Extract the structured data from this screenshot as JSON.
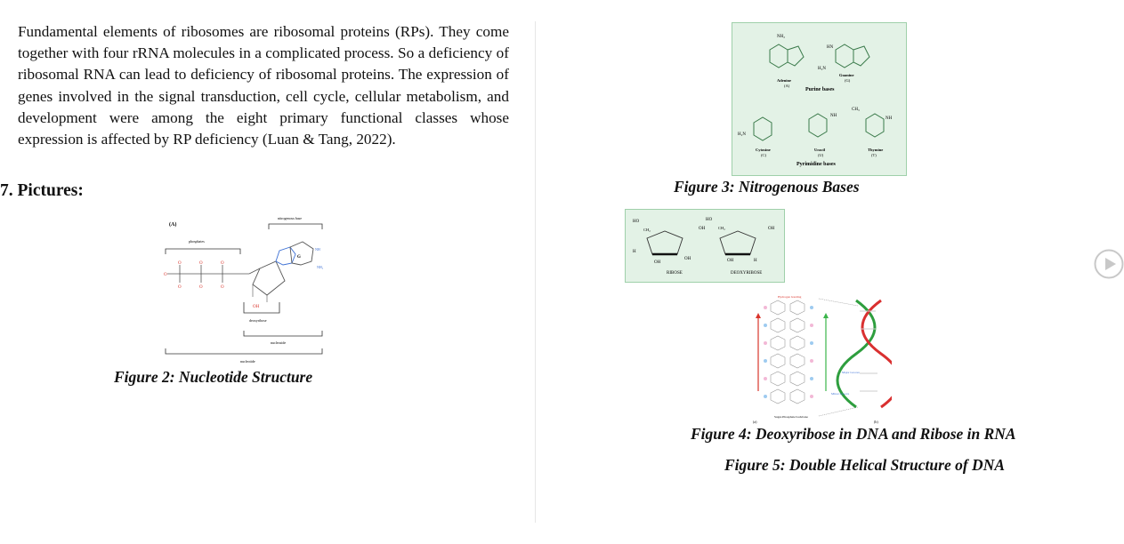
{
  "paragraph": "Fundamental elements of ribosomes are ribosomal proteins (RPs). They come together with four rRNA molecules in a complicated process. So a deficiency of ribosomal RNA can lead to deficiency of ribosomal proteins. The expression of genes involved in the signal transduction, cell cycle, cellular metabolism, and development were among the eight primary functional classes whose expression is affected by RP deficiency (Luan & Tang, 2022).",
  "heading": "7. Pictures:",
  "figure2": {
    "caption": "Figure 2: Nucleotide Structure",
    "label_a": "(A)",
    "nitrogenous_base": "nitrogenous base",
    "phosphates": "phosphates",
    "base_letter": "G",
    "deoxyribose": "deoxyribose",
    "nucleoside": "nucleoside",
    "nucleotide": "nucleotide",
    "oh": "OH",
    "nh": "NH",
    "nh2": "NH₂"
  },
  "figure3": {
    "caption": "Figure 3: Nitrogenous Bases",
    "adenine": "Adenine",
    "adenine_abbr": "(A)",
    "guanine": "Guanine",
    "guanine_abbr": "(G)",
    "purine_bases": "Purine bases",
    "cytosine": "Cytosine",
    "cytosine_abbr": "(C)",
    "uracil": "Uracil",
    "uracil_abbr": "(U)",
    "thymine": "Thymine",
    "thymine_abbr": "(T)",
    "pyrimidine_bases": "Pyrimidine bases",
    "nh2": "NH₂",
    "h2n": "H₂N",
    "hn": "HN",
    "nh": "NH",
    "ch3": "CH₃"
  },
  "figure4": {
    "caption": "Figure 4: Deoxyribose in DNA and Ribose in RNA",
    "ribose": "RIBOSE",
    "deoxyribose": "DEOXYRIBOSE",
    "ho": "HO",
    "oh": "OH",
    "ch2": "CH₂",
    "h": "H"
  },
  "figure5": {
    "caption": "Figure 5: Double Helical Structure of DNA",
    "hydrogen_bonding": "Hydrogen bonding",
    "sugar_phosphate_backbone": "Sugar-Phosphate backbone",
    "major_groove": "Major Groove",
    "minor_groove": "Minor Groove",
    "label_a": "(a)",
    "label_b": "(b)"
  },
  "icons": {
    "play": "play-circle-icon"
  }
}
